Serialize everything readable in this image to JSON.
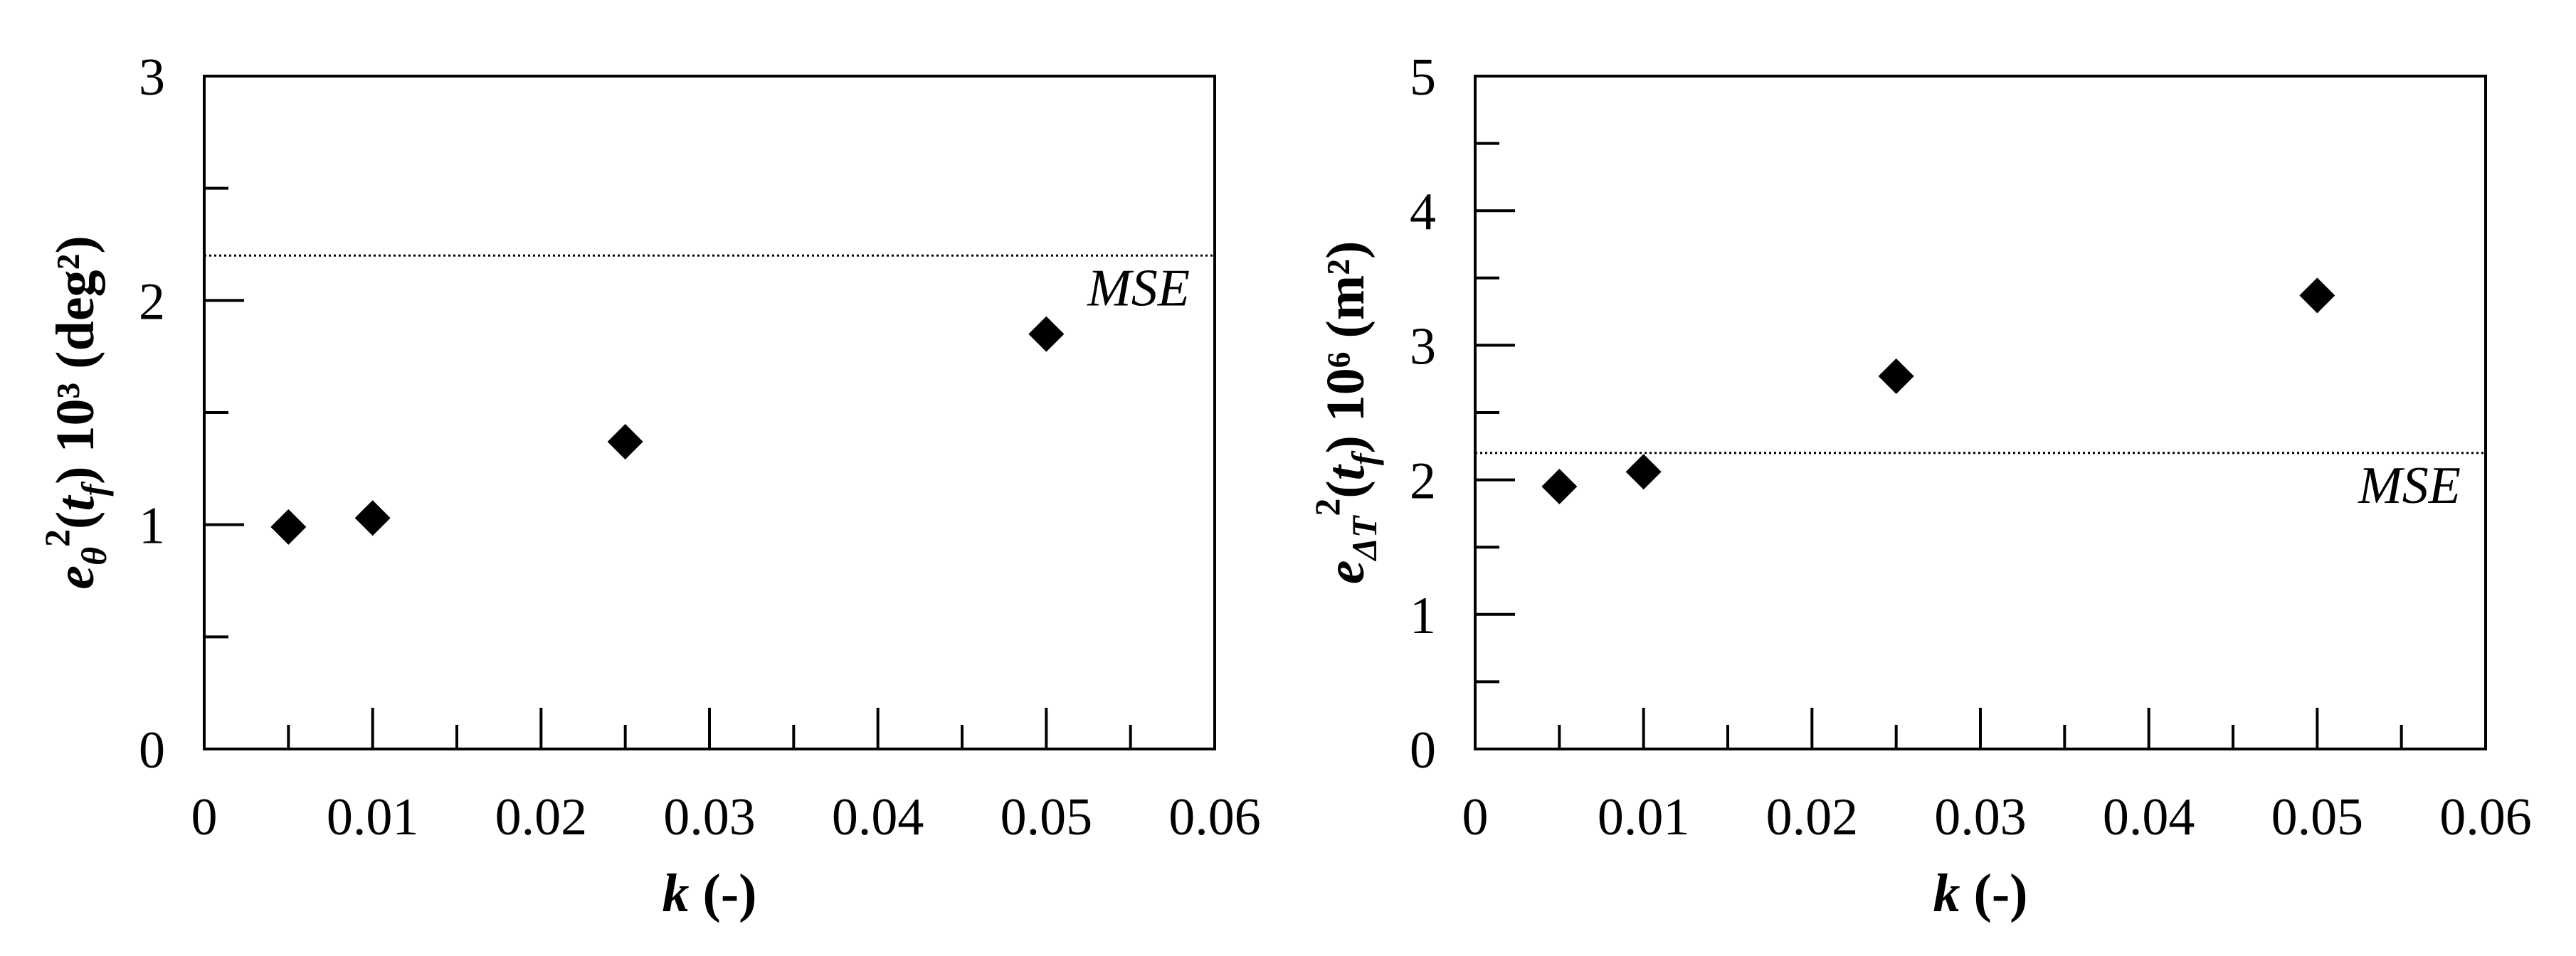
{
  "chart_data": [
    {
      "type": "scatter",
      "x": [
        0.005,
        0.01,
        0.025,
        0.05
      ],
      "y": [
        0.99,
        1.03,
        1.37,
        1.85
      ],
      "xlim": [
        0,
        0.06
      ],
      "ylim": [
        0,
        3
      ],
      "x_ticks": [
        "0",
        "0.01",
        "0.02",
        "0.03",
        "0.04",
        "0.05",
        "0.06"
      ],
      "y_ticks": [
        "0",
        "1",
        "2",
        "3"
      ],
      "xlabel": {
        "var": "k",
        "rest": " (-)"
      },
      "ylabel": {
        "e": "e",
        "sub": "θ",
        "sup": "2",
        "open": "(",
        "t": "t",
        "tsub": "f",
        "close": ")",
        "rest": " 10³ (deg²)"
      },
      "reference_line": {
        "label": "MSE",
        "y": 2.2,
        "style": "dotted"
      },
      "grid": false,
      "marker": "diamond",
      "color": "#000000"
    },
    {
      "type": "scatter",
      "x": [
        0.005,
        0.01,
        0.025,
        0.05
      ],
      "y": [
        1.95,
        2.06,
        2.77,
        3.37
      ],
      "xlim": [
        0,
        0.06
      ],
      "ylim": [
        0,
        5
      ],
      "x_ticks": [
        "0",
        "0.01",
        "0.02",
        "0.03",
        "0.04",
        "0.05",
        "0.06"
      ],
      "y_ticks": [
        "0",
        "1",
        "2",
        "3",
        "4",
        "5"
      ],
      "xlabel": {
        "var": "k",
        "rest": " (-)"
      },
      "ylabel": {
        "e": "e",
        "sub": "ΔT",
        "sup": "2",
        "open": "(",
        "t": "t",
        "tsub": "f",
        "close": ")",
        "rest": " 10⁶ (m²)"
      },
      "reference_line": {
        "label": "MSE",
        "y": 2.2,
        "style": "dotted"
      },
      "grid": false,
      "marker": "diamond",
      "color": "#000000"
    }
  ]
}
